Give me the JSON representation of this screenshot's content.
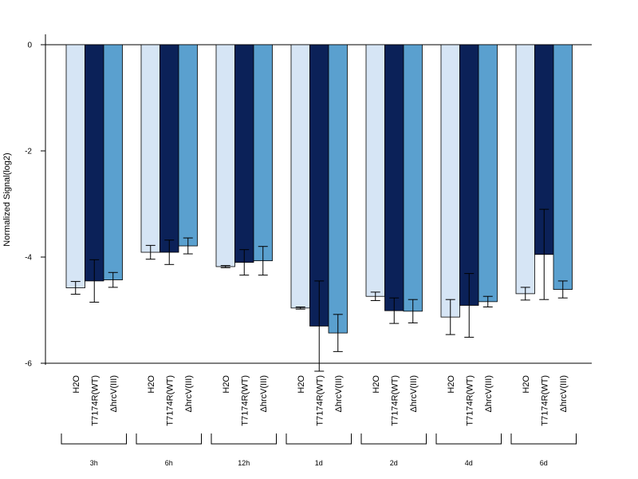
{
  "chart_data": {
    "type": "bar",
    "ylabel": "Normalized Signal(log2)",
    "xlabel": "",
    "ylim": [
      -6,
      0.2
    ],
    "yticks": [
      "0",
      "-2",
      "-4",
      "-6"
    ],
    "series_colors": {
      "H2O": "#d6e5f5",
      "T7174R(WT)": "#0b2158",
      "ΔhrcV(III)": "#5aa0cf"
    },
    "groups": [
      {
        "label": "3h",
        "bars": [
          {
            "name": "H2O",
            "value": -4.58,
            "err": 0.12
          },
          {
            "name": "T7174R(WT)",
            "value": -4.45,
            "err": 0.4
          },
          {
            "name": "ΔhrcV(III)",
            "value": -4.43,
            "err": 0.14
          }
        ]
      },
      {
        "label": "6h",
        "bars": [
          {
            "name": "H2O",
            "value": -3.91,
            "err": 0.13
          },
          {
            "name": "T7174R(WT)",
            "value": -3.91,
            "err": 0.23
          },
          {
            "name": "ΔhrcV(III)",
            "value": -3.79,
            "err": 0.15
          }
        ]
      },
      {
        "label": "12h",
        "bars": [
          {
            "name": "H2O",
            "value": -4.18,
            "err": 0.02
          },
          {
            "name": "T7174R(WT)",
            "value": -4.1,
            "err": 0.24
          },
          {
            "name": "ΔhrcV(III)",
            "value": -4.07,
            "err": 0.27
          }
        ]
      },
      {
        "label": "1d",
        "bars": [
          {
            "name": "H2O",
            "value": -4.96,
            "err": 0.02
          },
          {
            "name": "T7174R(WT)",
            "value": -5.3,
            "err": 0.85
          },
          {
            "name": "ΔhrcV(III)",
            "value": -5.43,
            "err": 0.35
          }
        ]
      },
      {
        "label": "2d",
        "bars": [
          {
            "name": "H2O",
            "value": -4.74,
            "err": 0.08
          },
          {
            "name": "T7174R(WT)",
            "value": -5.01,
            "err": 0.24
          },
          {
            "name": "ΔhrcV(III)",
            "value": -5.02,
            "err": 0.22
          }
        ]
      },
      {
        "label": "4d",
        "bars": [
          {
            "name": "H2O",
            "value": -5.13,
            "err": 0.33
          },
          {
            "name": "T7174R(WT)",
            "value": -4.91,
            "err": 0.6
          },
          {
            "name": "ΔhrcV(III)",
            "value": -4.84,
            "err": 0.1
          }
        ]
      },
      {
        "label": "6d",
        "bars": [
          {
            "name": "H2O",
            "value": -4.69,
            "err": 0.12
          },
          {
            "name": "T7174R(WT)",
            "value": -3.95,
            "err": 0.85
          },
          {
            "name": "ΔhrcV(III)",
            "value": -4.61,
            "err": 0.16
          }
        ]
      }
    ]
  }
}
